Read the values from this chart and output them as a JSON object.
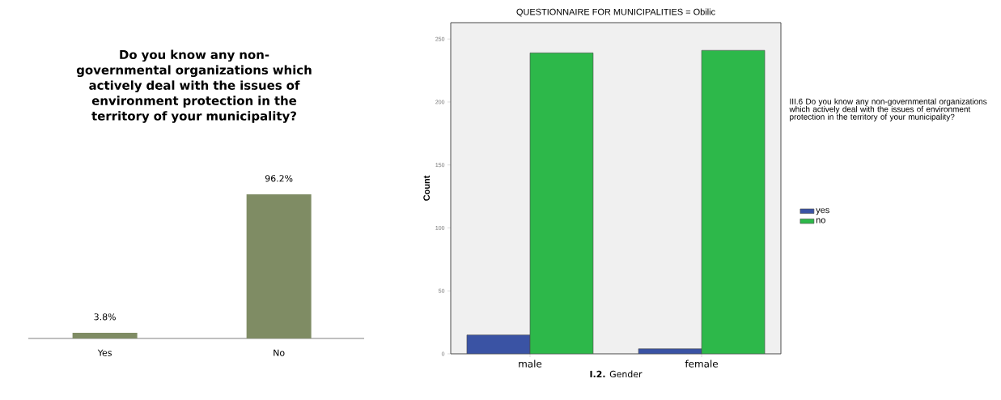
{
  "chart_data": [
    {
      "type": "bar",
      "title": "Do you know any non-governmental organizations which actively deal with the issues of environment protection in the territory of your municipality?",
      "categories": [
        "Yes",
        "No"
      ],
      "values": [
        3.8,
        96.2
      ],
      "value_labels": [
        "3.8%",
        "96.2%"
      ],
      "color": "#7f8c64"
    },
    {
      "type": "bar",
      "title": "QUESTIONNAIRE FOR MUNICIPALITIES = Obilic",
      "xlabel": "**I.2.** Gender",
      "ylabel": "Count",
      "legend_title": "III.6 Do you know any non-governmental organizations which actively deal with the issues of environment protection in the territory of your municipality?",
      "categories": [
        "male",
        "female"
      ],
      "series": [
        {
          "name": "yes",
          "color": "#3a53a4",
          "values": [
            15,
            4
          ]
        },
        {
          "name": "no",
          "color": "#2db84a",
          "values": [
            239,
            241
          ]
        }
      ],
      "ylim": [
        0,
        263
      ],
      "yticks": [
        0,
        50,
        100,
        150,
        200,
        250
      ],
      "legend": "right"
    }
  ]
}
